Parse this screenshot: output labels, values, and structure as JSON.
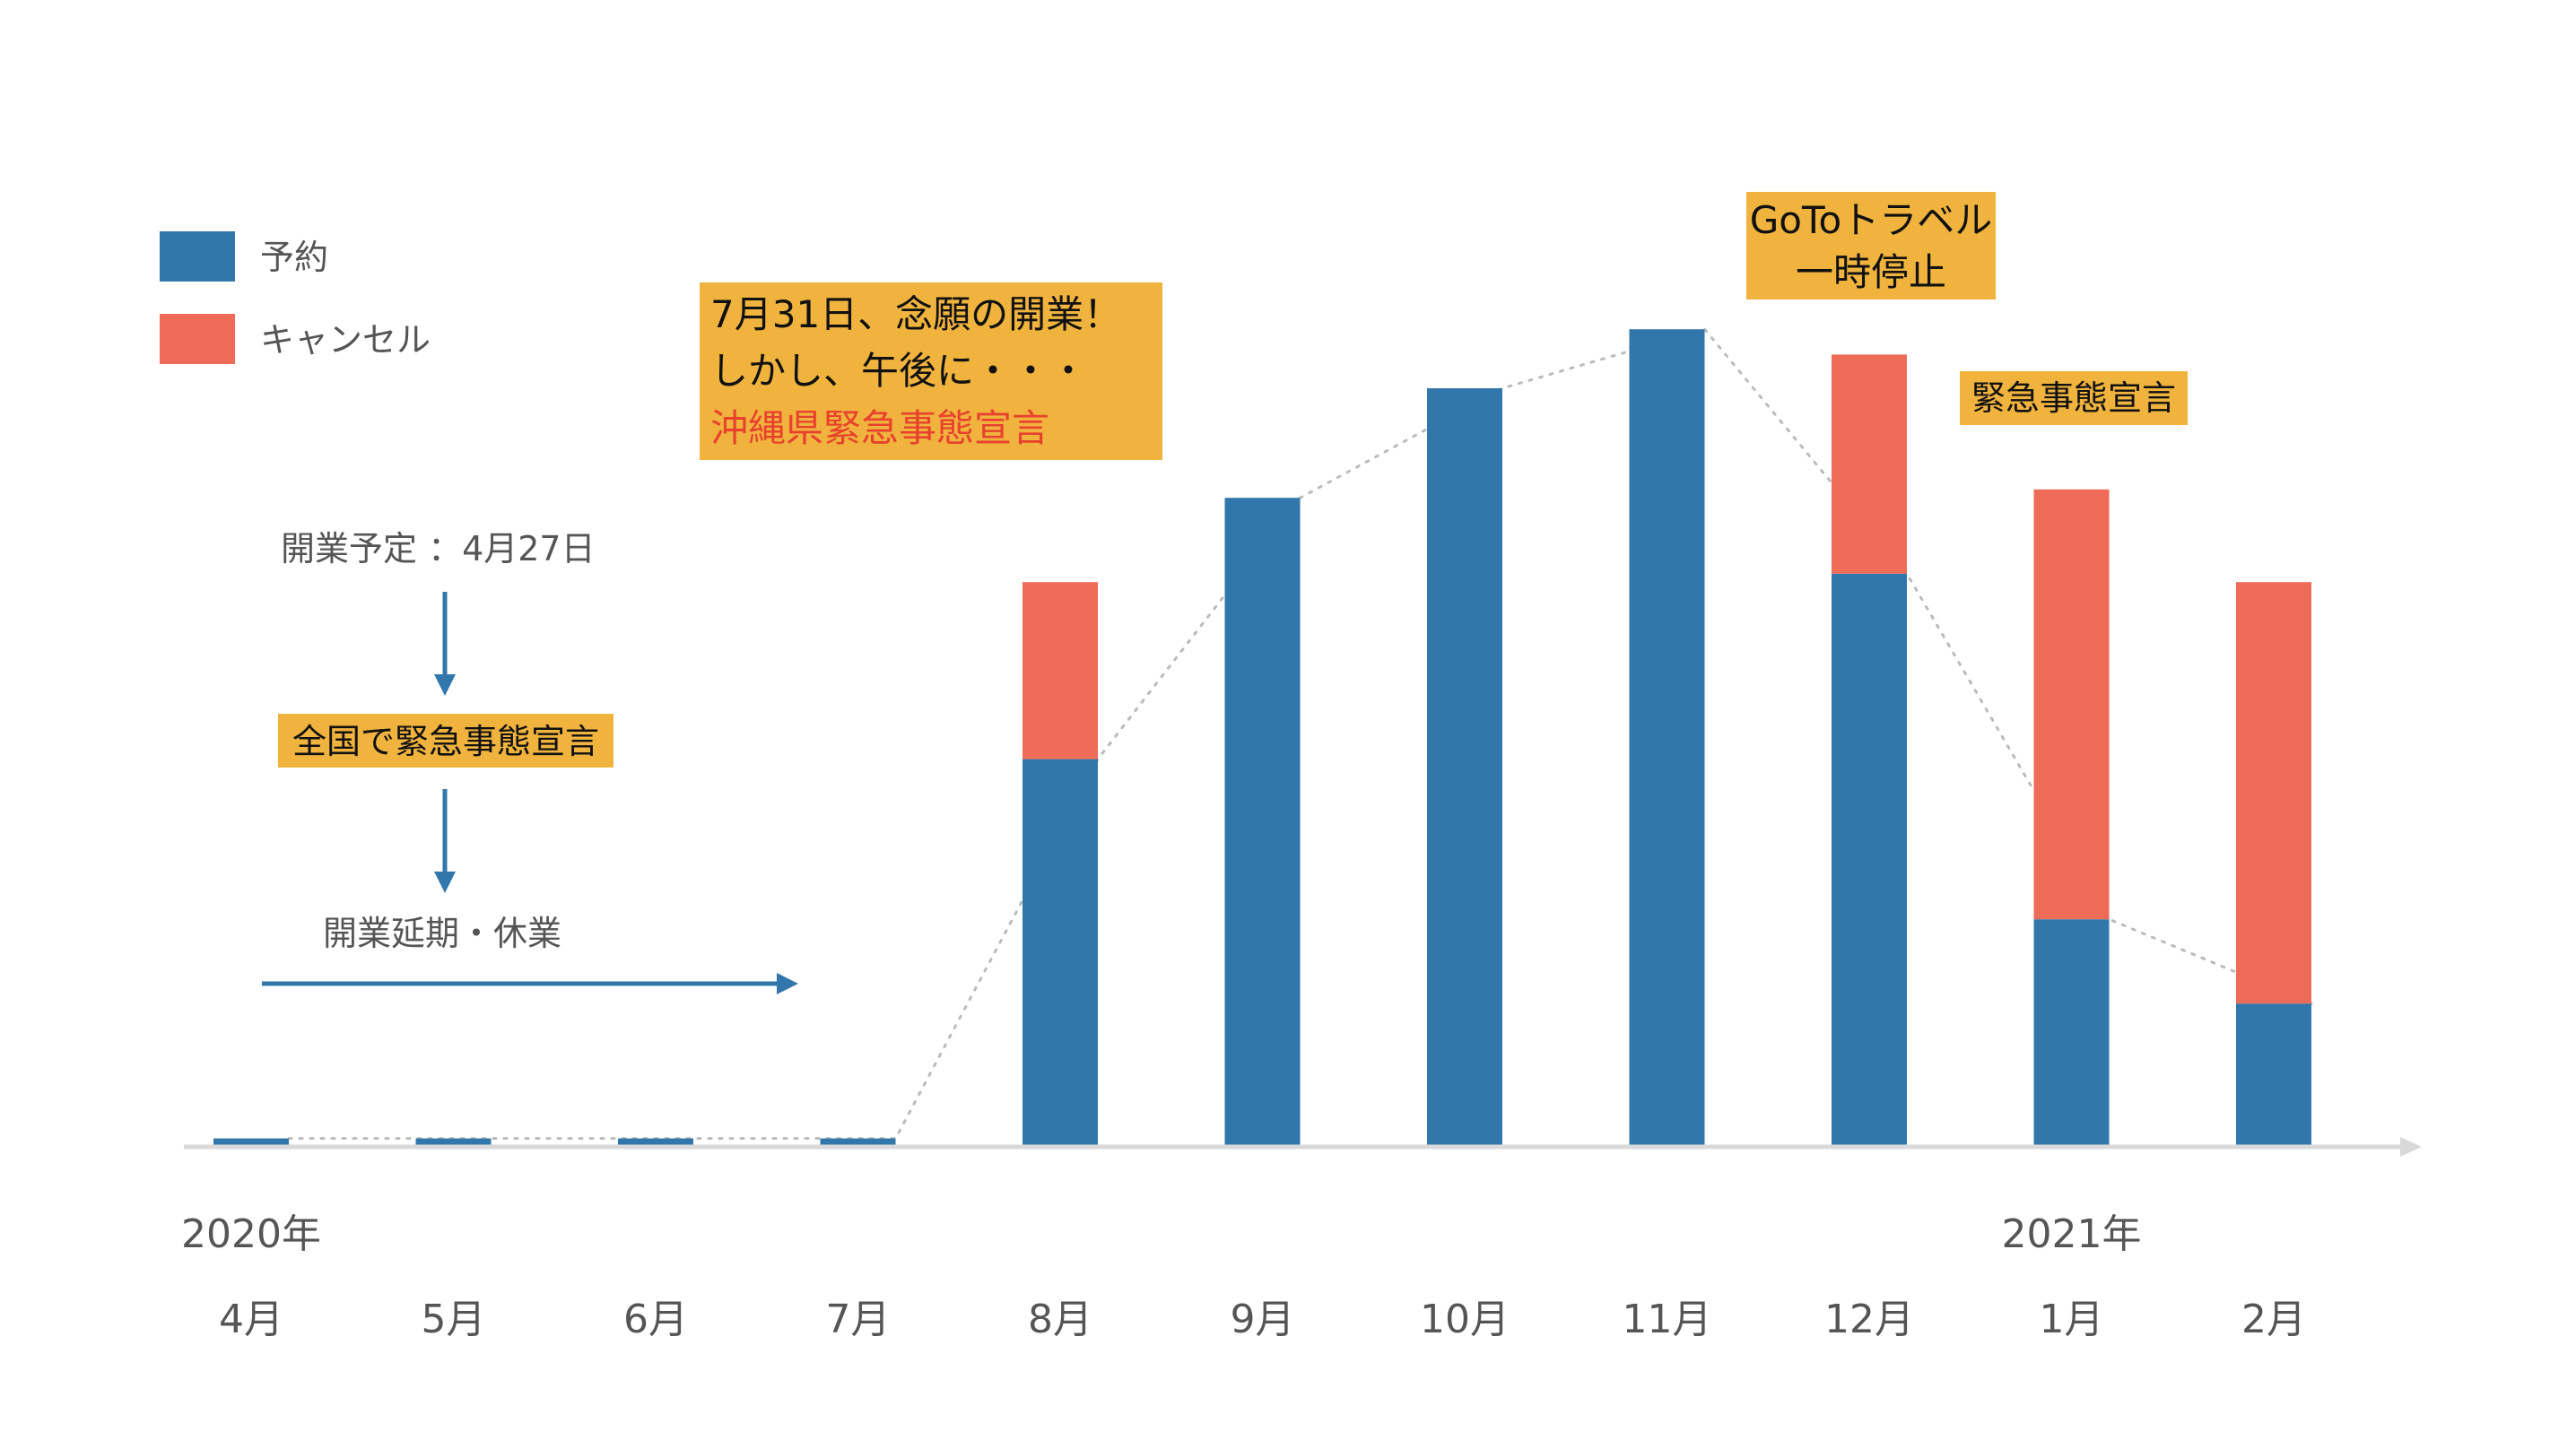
{
  "chart_data": {
    "type": "bar",
    "stacked": true,
    "categories": [
      "4月",
      "5月",
      "6月",
      "7月",
      "8月",
      "9月",
      "10月",
      "11月",
      "12月",
      "1月",
      "2月"
    ],
    "series": [
      {
        "name": "予約",
        "color": "#3277ab",
        "values": [
          1,
          1,
          1,
          1,
          46,
          77,
          90,
          97,
          68,
          27,
          17
        ]
      },
      {
        "name": "キャンセル",
        "color": "#ee6b57",
        "values": [
          0,
          0,
          0,
          0,
          21,
          0,
          0,
          0,
          26,
          51,
          50
        ]
      }
    ],
    "trend_line": {
      "style": "dotted",
      "color": "#bbbbbb"
    },
    "year_labels": [
      {
        "text": "2020年",
        "category": "4月"
      },
      {
        "text": "2021年",
        "category": "1月"
      }
    ],
    "legend": {
      "placement": "top-left"
    },
    "grid": false
  },
  "notes": {
    "planned_opening": "開業予定 ：4月27日",
    "national_emergency": "全国で緊急事態宣言",
    "postponed": "開業延期・休業"
  },
  "callouts": {
    "july_line1": "7月31日、念願の開業！",
    "july_line2": "しかし、午後に・・・",
    "july_line3": "沖縄県緊急事態宣言",
    "goto_line1": "GoToトラベル",
    "goto_line2": "一時停止",
    "emergency_2021": "緊急事態宣言"
  },
  "colors": {
    "booking": "#3277ab",
    "cancel": "#ee6b57",
    "callout_bg": "#f0b33e",
    "axis": "#d9d9d9",
    "arrow": "#3277ab"
  }
}
